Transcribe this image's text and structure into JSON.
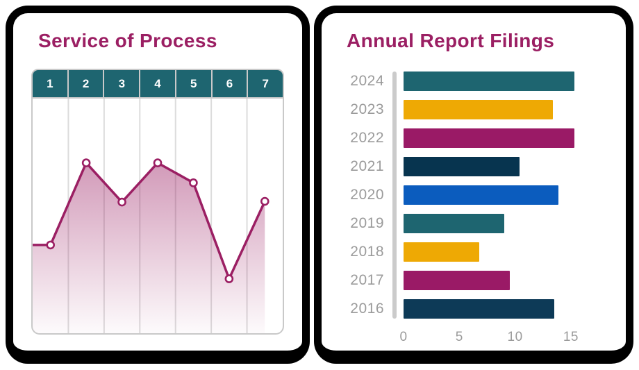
{
  "colors": {
    "brand_magenta": "#9B1F63",
    "header_teal": "#1E6570",
    "label_gray": "#9B9B9B",
    "axis_bar_gray": "#CBCBCB",
    "grid_gray": "#DCDCDC",
    "frame_gray": "#C9C9C9",
    "card_border_black": "#000000",
    "card_background": "#FFFFFF"
  },
  "chart_data": [
    {
      "type": "line",
      "title": "Service of Process",
      "categories": [
        "1",
        "2",
        "3",
        "4",
        "5",
        "6",
        "7"
      ],
      "values_percent": [
        37.6,
        72.6,
        55.9,
        72.6,
        64.1,
        23.2,
        56.2
      ],
      "y_axis": "unlabeled (no tick values shown)",
      "line_color": "#9B1F63",
      "marker_style": "white circle with magenta ring",
      "area_fill": "vertical gradient from translucent magenta to transparent",
      "leading_flat_segment_from_left_edge": true,
      "grid": "vertical column separators only",
      "header_fill": "#1E6570",
      "header_text_color": "#FFFFFF"
    },
    {
      "type": "bar",
      "orientation": "horizontal",
      "title": "Annual Report Filings",
      "categories": [
        "2024",
        "2023",
        "2022",
        "2021",
        "2020",
        "2019",
        "2018",
        "2017",
        "2016"
      ],
      "values": [
        15.3,
        13.4,
        15.3,
        10.4,
        13.9,
        9.0,
        6.8,
        9.5,
        13.5
      ],
      "bar_colors": [
        "#1E6570",
        "#EEA904",
        "#9A1A66",
        "#07344F",
        "#0B5CBE",
        "#1E6570",
        "#EEA904",
        "#9A1A66",
        "#0D3A57"
      ],
      "xticks": [
        0,
        5,
        10,
        15
      ],
      "xlim": [
        0,
        16.5
      ],
      "legend": "none",
      "grid": "off"
    }
  ]
}
